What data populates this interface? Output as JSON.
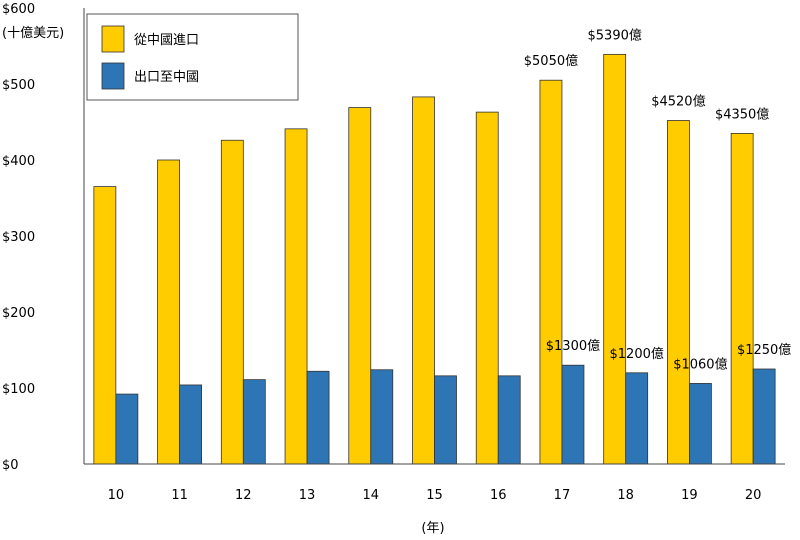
{
  "chart_data": {
    "type": "bar",
    "ylabel": "(十億美元)",
    "xlabel": "(年)",
    "ylim": [
      0,
      600
    ],
    "yticks": [
      "$0",
      "$100",
      "$200",
      "$300",
      "$400",
      "$500",
      "$600"
    ],
    "categories": [
      "10",
      "11",
      "12",
      "13",
      "14",
      "15",
      "16",
      "17",
      "18",
      "19",
      "20"
    ],
    "legend_position": "top-left",
    "grid": false,
    "series": [
      {
        "name": "從中國進口",
        "color": "#ffcc00",
        "values": [
          365,
          400,
          426,
          441,
          469,
          483,
          463,
          505,
          539,
          452,
          435
        ],
        "labels": [
          "",
          "",
          "",
          "",
          "",
          "",
          "",
          "$5050億",
          "$5390億",
          "$4520億",
          "$4350億"
        ]
      },
      {
        "name": "出口至中國",
        "color": "#2e75b6",
        "values": [
          92,
          104,
          111,
          122,
          124,
          116,
          116,
          130,
          120,
          106,
          125
        ],
        "labels": [
          "",
          "",
          "",
          "",
          "",
          "",
          "",
          "$1300億",
          "$1200億",
          "$1060億",
          "$1250億"
        ]
      }
    ]
  }
}
